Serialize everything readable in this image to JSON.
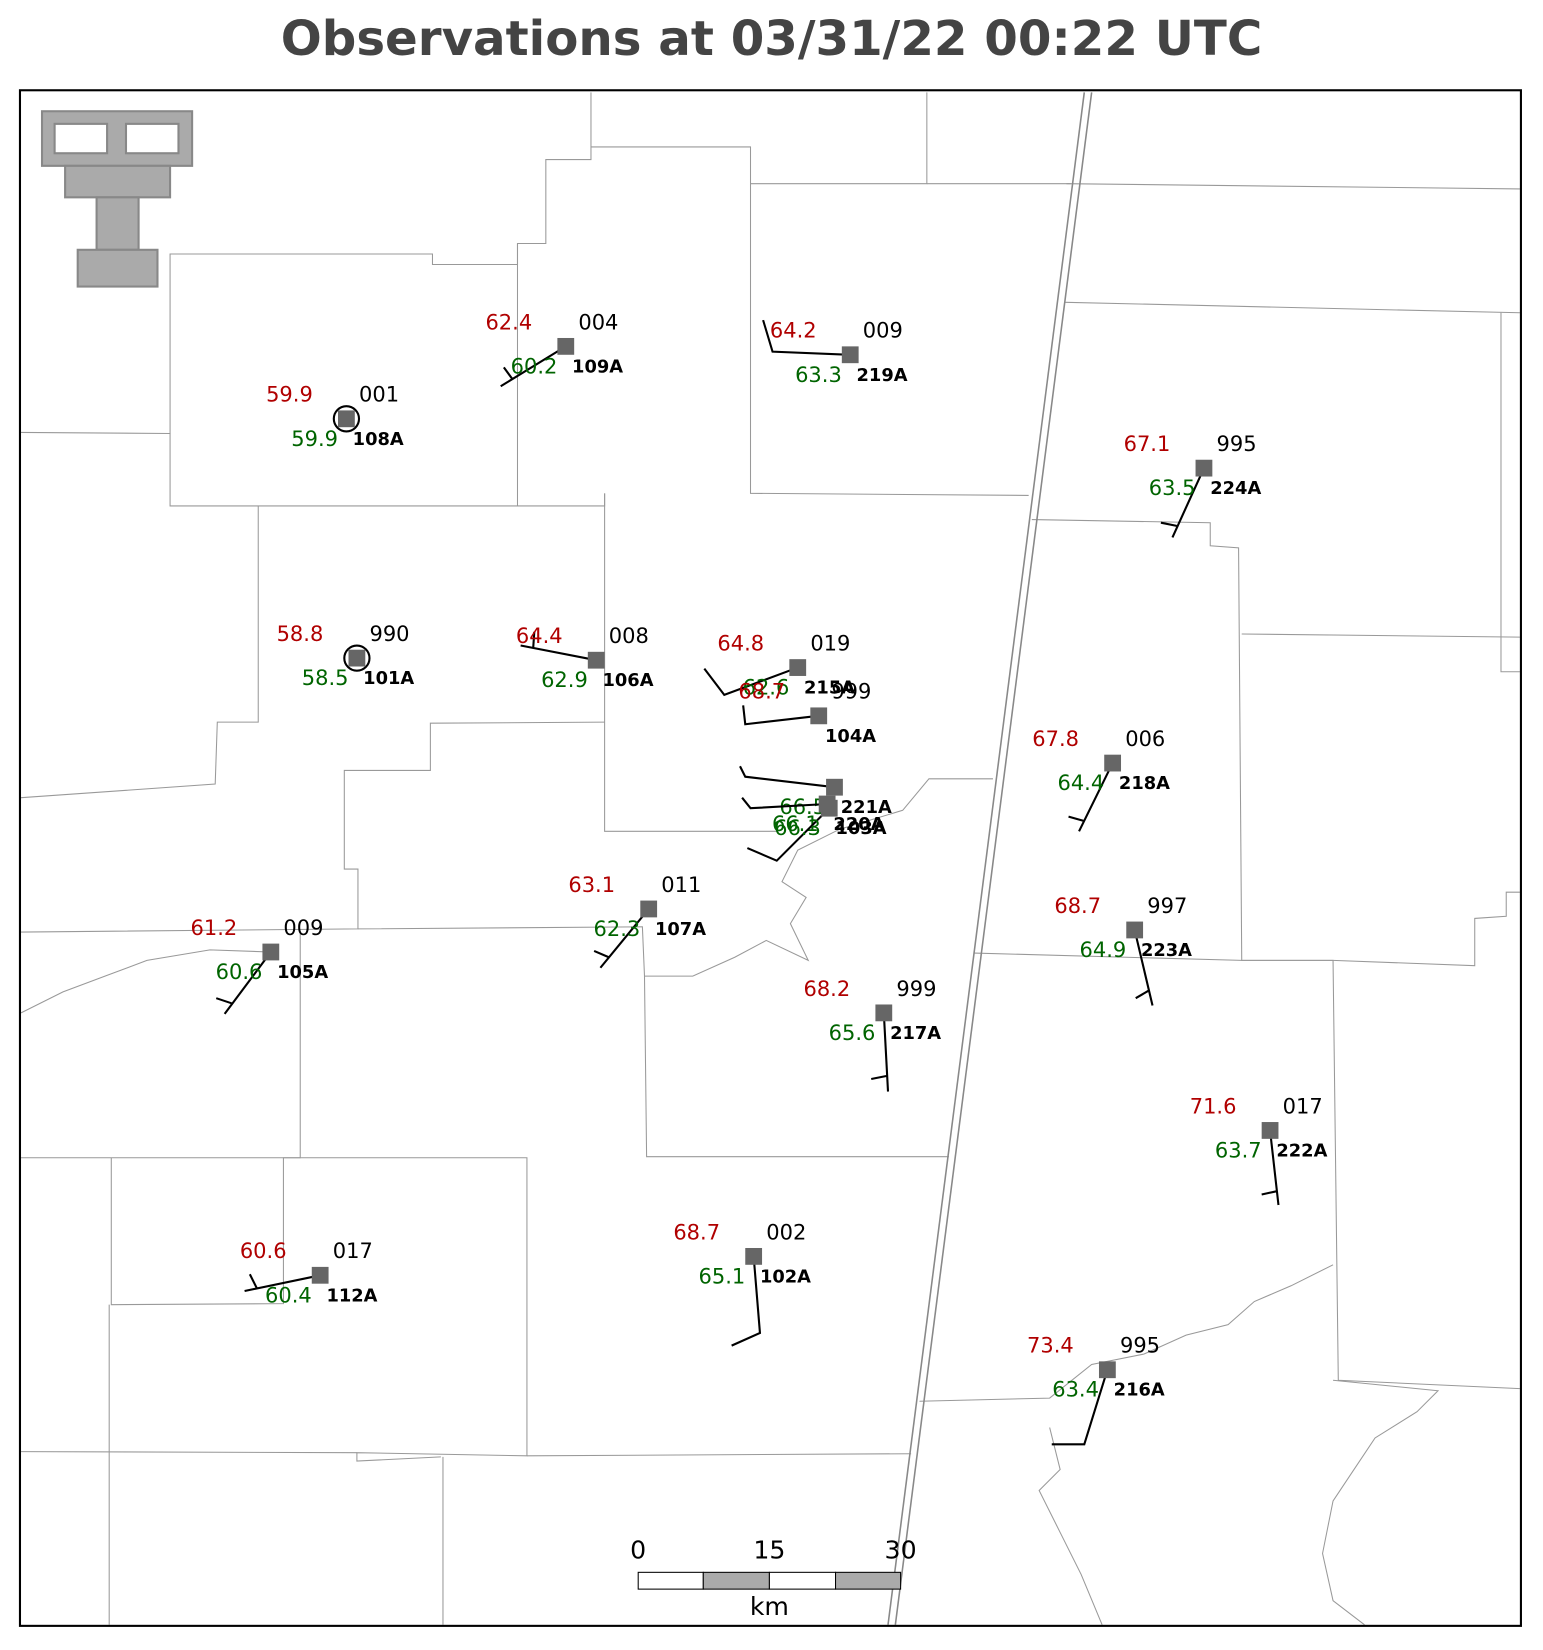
{
  "title": "Observations at 03/31/22 00:22 UTC",
  "stations": [
    {
      "id": "108A",
      "temperature": 59.9,
      "dewpoint": 59.9,
      "pressure": "001"
    },
    {
      "id": "109A",
      "temperature": 62.4,
      "dewpoint": 60.2,
      "pressure": "004"
    },
    {
      "id": "219A",
      "temperature": 64.2,
      "dewpoint": 63.3,
      "pressure": "009"
    },
    {
      "id": "224A",
      "temperature": 67.1,
      "dewpoint": 63.5,
      "pressure": "995"
    },
    {
      "id": "101A",
      "temperature": 58.8,
      "dewpoint": 58.5,
      "pressure": "990"
    },
    {
      "id": "106A",
      "temperature": 64.4,
      "dewpoint": 62.9,
      "pressure": "008"
    },
    {
      "id": "215A",
      "temperature": 64.8,
      "dewpoint": 62.6,
      "pressure": "019"
    },
    {
      "id": "218A",
      "temperature": 67.8,
      "dewpoint": 64.4,
      "pressure": "006"
    },
    {
      "id": "107A",
      "temperature": 63.1,
      "dewpoint": 62.3,
      "pressure": "011"
    },
    {
      "id": "105A",
      "temperature": 61.2,
      "dewpoint": 60.6,
      "pressure": "009"
    },
    {
      "id": "223A",
      "temperature": 68.7,
      "dewpoint": 64.9,
      "pressure": "997"
    },
    {
      "id": "217A",
      "temperature": 68.2,
      "dewpoint": 65.6,
      "pressure": "999"
    },
    {
      "id": "222A",
      "temperature": 71.6,
      "dewpoint": 63.7,
      "pressure": "017"
    },
    {
      "id": "112A",
      "temperature": 60.6,
      "dewpoint": 60.4,
      "pressure": "017"
    },
    {
      "id": "102A",
      "temperature": 68.7,
      "dewpoint": 65.1,
      "pressure": "002"
    },
    {
      "id": "216A",
      "temperature": 73.4,
      "dewpoint": 63.4,
      "pressure": "995"
    },
    {
      "id": "104A",
      "temperature": 68.7,
      "pressure": "999"
    },
    {
      "id": "221A",
      "dewpoint": 66.5
    },
    {
      "id": "220A",
      "dewpoint": 66.1
    },
    {
      "id": "103A",
      "dewpoint": 66.3
    }
  ],
  "scale_bar": {
    "ticks": [
      0,
      15,
      30
    ],
    "unit": "km"
  }
}
